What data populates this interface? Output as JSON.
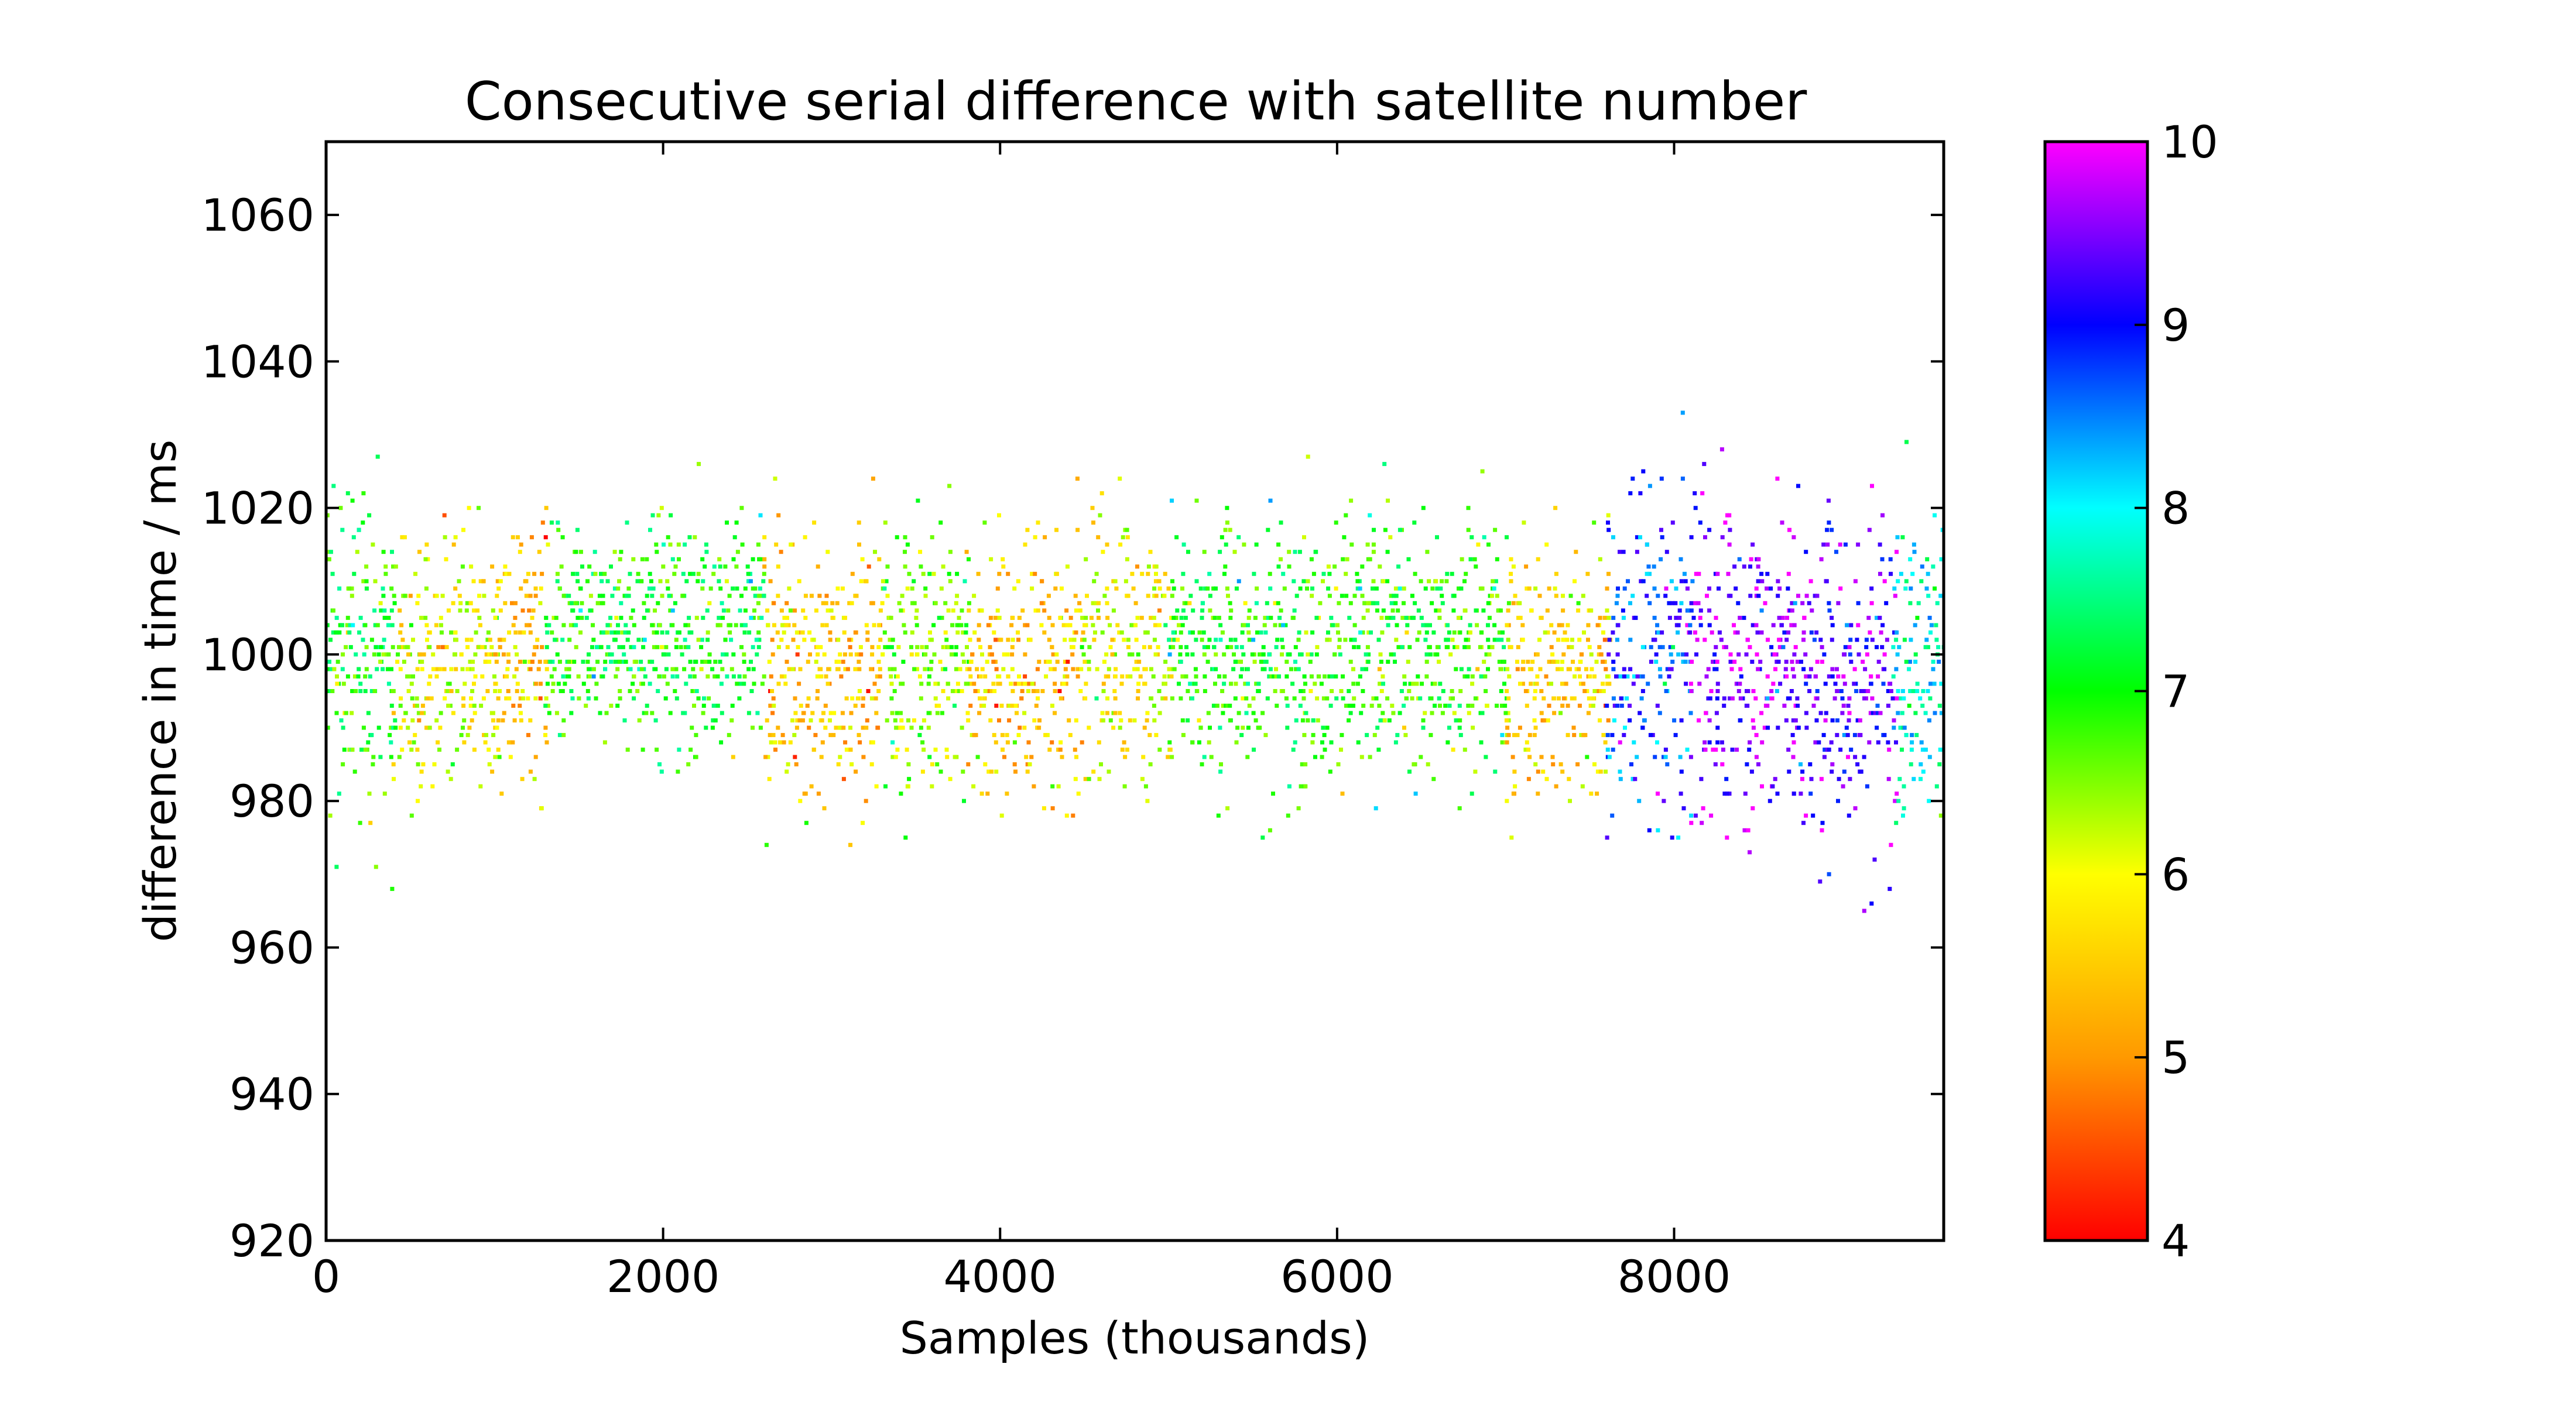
{
  "chart_data": {
    "type": "scatter",
    "title": "Consecutive serial difference with satellite number",
    "xlabel": "Samples (thousands)",
    "ylabel": "difference in time / ms",
    "xlim": [
      0,
      9600
    ],
    "ylim": [
      920,
      1070
    ],
    "xticks": [
      0,
      2000,
      4000,
      6000,
      8000
    ],
    "yticks": [
      920,
      940,
      960,
      980,
      1000,
      1020,
      1040,
      1060
    ],
    "grid": false,
    "legend": "none",
    "colorbar": {
      "label": "",
      "range": [
        4,
        10
      ],
      "ticks": [
        4,
        5,
        6,
        7,
        8,
        9,
        10
      ],
      "colormap": "gist_rainbow",
      "stops": [
        "#ff0000",
        "#ff9900",
        "#ffff00",
        "#00ff00",
        "#00ffff",
        "#0000ff",
        "#ff00ff"
      ]
    },
    "segments": [
      {
        "x": [
          0,
          400
        ],
        "sat": 7,
        "center": 1000,
        "spread": 20
      },
      {
        "x": [
          400,
          1000
        ],
        "sat": 6,
        "center": 998,
        "spread": 16
      },
      {
        "x": [
          1000,
          1300
        ],
        "sat": 5.5,
        "center": 1000,
        "spread": 15
      },
      {
        "x": [
          1300,
          2600
        ],
        "sat": 7,
        "center": 1003,
        "spread": 14
      },
      {
        "x": [
          2600,
          3300
        ],
        "sat": 5.5,
        "center": 998,
        "spread": 17
      },
      {
        "x": [
          3300,
          3800
        ],
        "sat": 6.5,
        "center": 1000,
        "spread": 17
      },
      {
        "x": [
          3800,
          4500
        ],
        "sat": 5.5,
        "center": 998,
        "spread": 16
      },
      {
        "x": [
          4500,
          5000
        ],
        "sat": 6,
        "center": 1000,
        "spread": 16
      },
      {
        "x": [
          5000,
          5800
        ],
        "sat": 7,
        "center": 1000,
        "spread": 16
      },
      {
        "x": [
          5800,
          7000
        ],
        "sat": 6.8,
        "center": 1001,
        "spread": 16
      },
      {
        "x": [
          7000,
          7600
        ],
        "sat": 5.6,
        "center": 998,
        "spread": 16
      },
      {
        "x": [
          7600,
          8100
        ],
        "sat": 8.7,
        "center": 1000,
        "spread": 20
      },
      {
        "x": [
          8100,
          8700
        ],
        "sat": 9.6,
        "center": 998,
        "spread": 20
      },
      {
        "x": [
          8700,
          9300
        ],
        "sat": 9.4,
        "center": 996,
        "spread": 20
      },
      {
        "x": [
          9300,
          9600
        ],
        "sat": 7.9,
        "center": 1000,
        "spread": 18
      }
    ]
  }
}
